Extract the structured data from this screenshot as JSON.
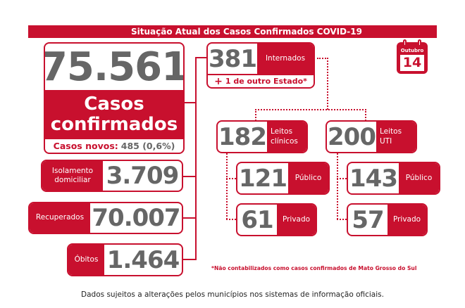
{
  "title": "Situação Atual dos Casos Confirmados COVID-19",
  "colors": {
    "accent": "#c8102e",
    "number": "#666666"
  },
  "calendar": {
    "month": "Outubro",
    "day": "14",
    "icon": "calendar-icon"
  },
  "confirmed": {
    "value": "75.561",
    "label_line1": "Casos",
    "label_line2": "confirmados",
    "new_label": "Casos novos:",
    "new_value": "485 (0,6%)"
  },
  "isolation": {
    "label_line1": "Isolamento",
    "label_line2": "domiciliar",
    "value": "3.709"
  },
  "recovered": {
    "label": "Recuperados",
    "value": "70.007"
  },
  "deaths": {
    "label": "Óbitos",
    "value": "1.464"
  },
  "hospitalized": {
    "value": "381",
    "label": "Internados",
    "extra_plus": "+",
    "extra": "1 de outro Estado*"
  },
  "clinical": {
    "value": "182",
    "label_line1": "Leitos",
    "label_line2": "clínicos",
    "public_value": "121",
    "public_label": "Público",
    "private_value": "61",
    "private_label": "Privado"
  },
  "icu": {
    "value": "200",
    "label_line1": "Leitos",
    "label_line2": "UTI",
    "public_value": "143",
    "public_label": "Público",
    "private_value": "57",
    "private_label": "Privado"
  },
  "footnote": "*Não contabilizados como casos confirmados de Mato Grosso do Sul",
  "disclaimer": "Dados sujeitos a alterações pelos municípios nos sistemas de informação oficiais."
}
